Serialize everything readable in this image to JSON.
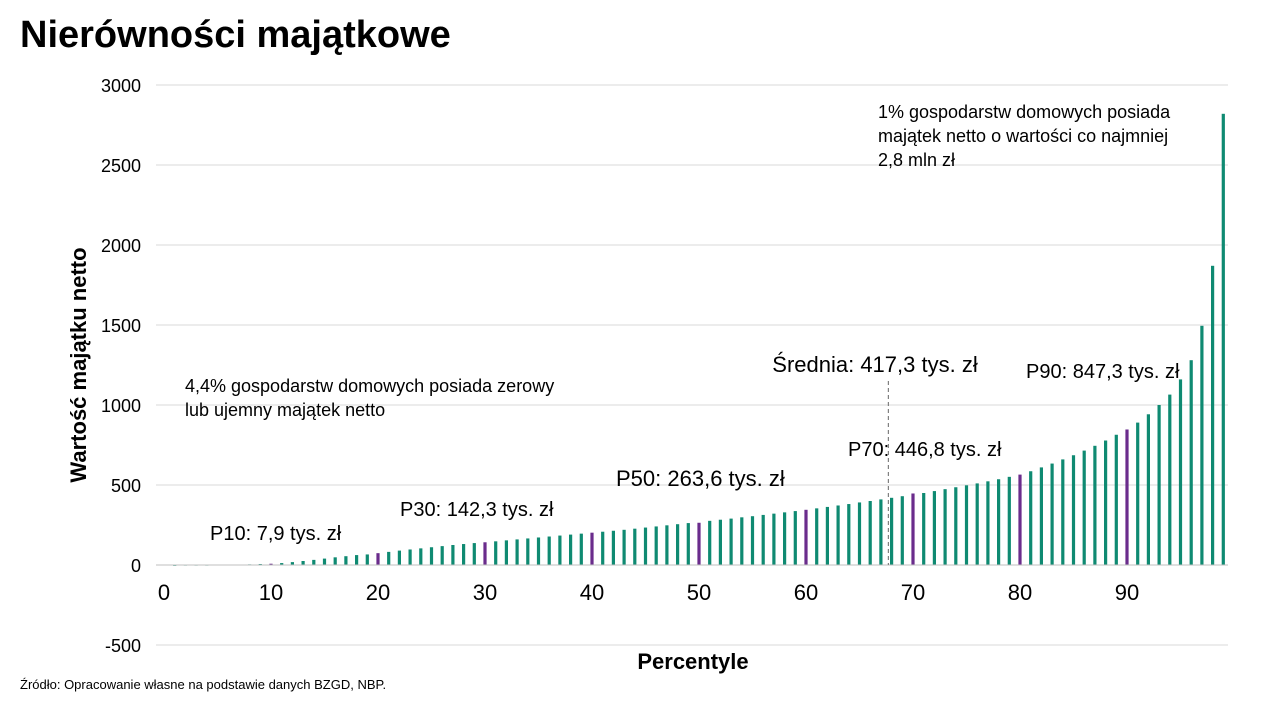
{
  "title": "Nierówności majątkowe",
  "source": "Źródło: Opracowanie własne na podstawie danych BZGD, NBP.",
  "chart_data": {
    "type": "bar",
    "xlabel": "Percentyle",
    "ylabel": "Wartość majątku netto",
    "ylim": [
      -500,
      3000
    ],
    "y_ticks": [
      3000,
      2500,
      2000,
      1500,
      1000,
      500,
      0,
      -500
    ],
    "x_ticks": [
      0,
      10,
      20,
      30,
      40,
      50,
      60,
      70,
      80,
      90
    ],
    "grid": "horizontal",
    "colors": {
      "bar": "#0f8a72",
      "highlight": "#6a2c8c",
      "grid": "#d9d9d9",
      "mean_line": "#808080"
    },
    "highlighted_percentiles": [
      10,
      20,
      30,
      40,
      50,
      60,
      70,
      80,
      90
    ],
    "percentiles": [
      1,
      2,
      3,
      4,
      5,
      6,
      7,
      8,
      9,
      10,
      11,
      12,
      13,
      14,
      15,
      16,
      17,
      18,
      19,
      20,
      21,
      22,
      23,
      24,
      25,
      26,
      27,
      28,
      29,
      30,
      31,
      32,
      33,
      34,
      35,
      36,
      37,
      38,
      39,
      40,
      41,
      42,
      43,
      44,
      45,
      46,
      47,
      48,
      49,
      50,
      51,
      52,
      53,
      54,
      55,
      56,
      57,
      58,
      59,
      60,
      61,
      62,
      63,
      64,
      65,
      66,
      67,
      68,
      69,
      70,
      71,
      72,
      73,
      74,
      75,
      76,
      77,
      78,
      79,
      80,
      81,
      82,
      83,
      84,
      85,
      86,
      87,
      88,
      89,
      90,
      91,
      92,
      93,
      94,
      95,
      96,
      97,
      98,
      99
    ],
    "values": [
      -5,
      0,
      0,
      0,
      1,
      2,
      3,
      4,
      6,
      8,
      12,
      18,
      25,
      32,
      40,
      48,
      55,
      62,
      66,
      74,
      82,
      90,
      97,
      104,
      111,
      118,
      125,
      131,
      137,
      142,
      148,
      154,
      160,
      166,
      172,
      178,
      184,
      190,
      196,
      202,
      208,
      214,
      220,
      227,
      234,
      241,
      248,
      255,
      262,
      264,
      276,
      283,
      290,
      298,
      305,
      313,
      321,
      329,
      337,
      345,
      354,
      363,
      372,
      381,
      391,
      400,
      410,
      420,
      430,
      447,
      450,
      462,
      474,
      486,
      498,
      510,
      523,
      536,
      551,
      565,
      586,
      610,
      634,
      660,
      686,
      715,
      745,
      778,
      814,
      847,
      890,
      942,
      1000,
      1065,
      1160,
      1280,
      1495,
      1870,
      2820
    ],
    "annotations": [
      {
        "id": "top1",
        "text": "1% gospodarstw domowych posiada majątek netto o wartości co najmniej 2,8 mln zł",
        "lines": [
          "1% gospodarstw domowych posiada",
          "majątek netto o wartości co najmniej",
          "2,8 mln zł"
        ]
      },
      {
        "id": "negative",
        "text": "4,4% gospodarstw domowych posiada zerowy lub ujemny majątek netto",
        "lines": [
          "4,4% gospodarstw domowych posiada zerowy",
          "lub ujemny majątek netto"
        ]
      },
      {
        "id": "mean",
        "text": "Średnia: 417,3 tys. zł",
        "x": 67.7,
        "y": 417.3
      },
      {
        "id": "p10",
        "text": "P10: 7,9 tys. zł"
      },
      {
        "id": "p30",
        "text": "P30: 142,3 tys. zł"
      },
      {
        "id": "p50",
        "text": "P50: 263,6 tys. zł"
      },
      {
        "id": "p70",
        "text": "P70: 446,8 tys. zł"
      },
      {
        "id": "p90",
        "text": "P90: 847,3 tys. zł"
      }
    ]
  }
}
